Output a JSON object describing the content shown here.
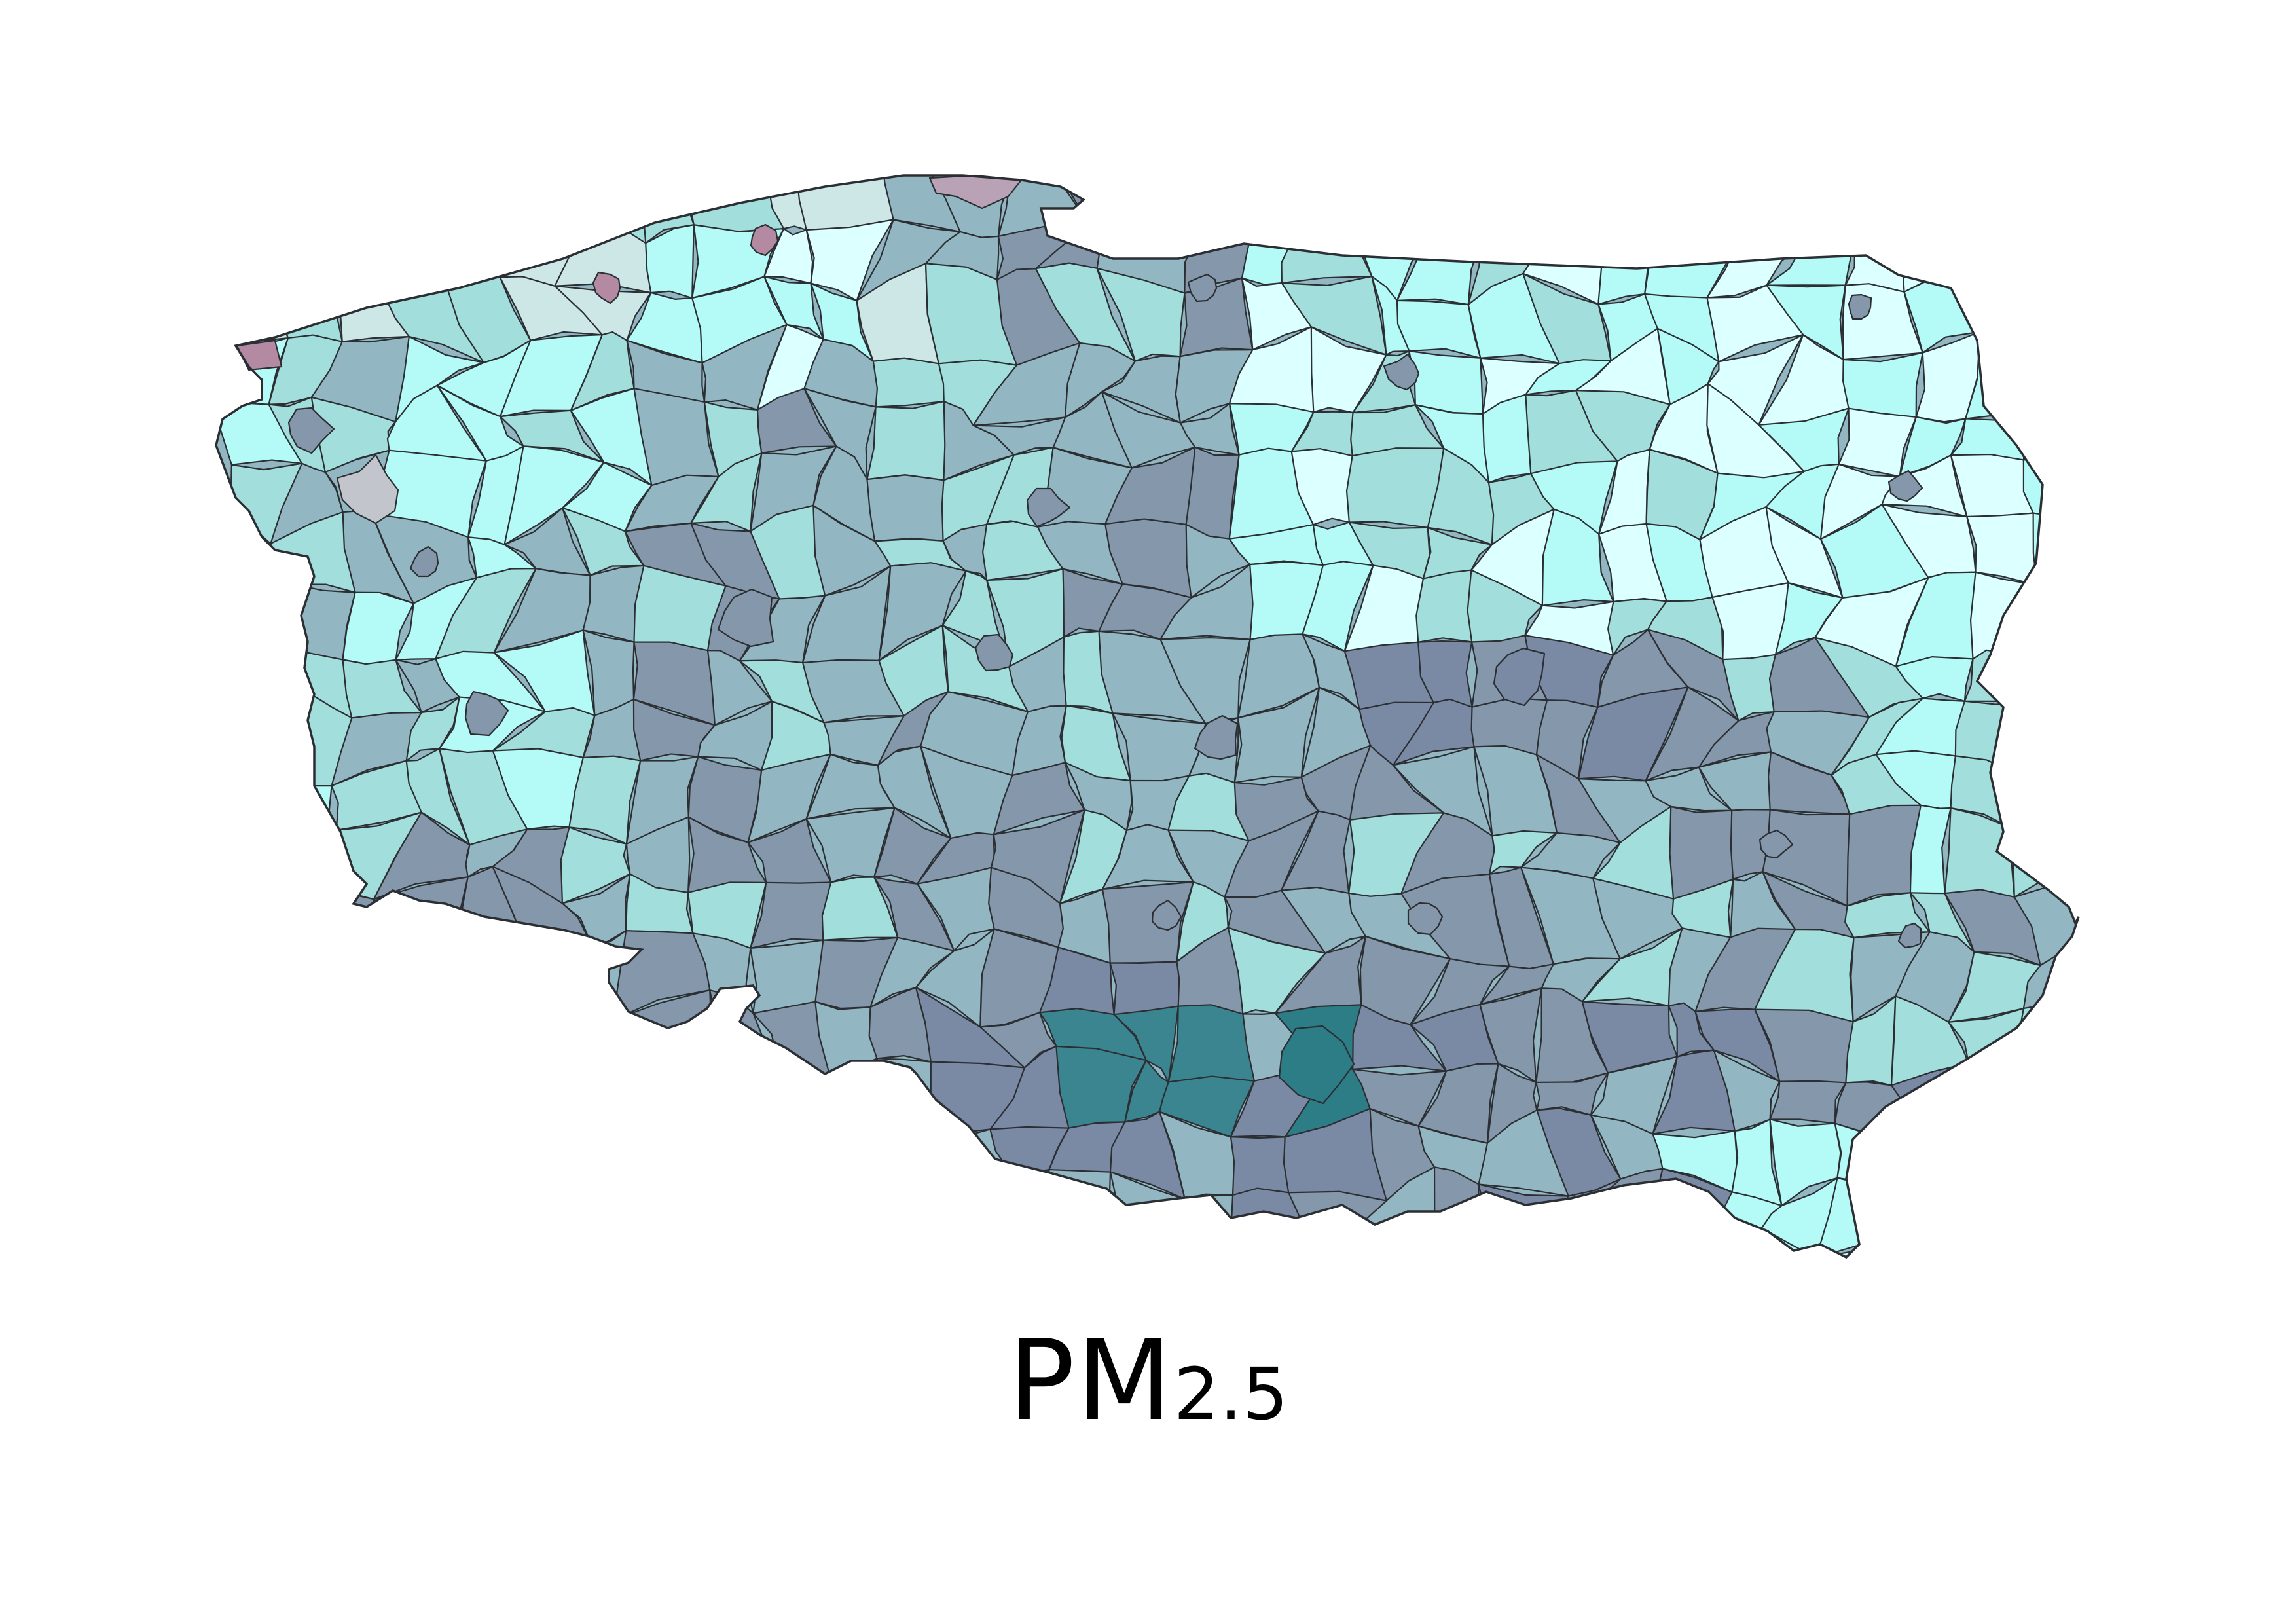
{
  "title": {
    "main": "PM",
    "sub": "2.5"
  },
  "palette": {
    "background": "#ffffff",
    "border": "#2b2f33",
    "very_low": "#dcffff",
    "low": "#b4fbf8",
    "low_mid": "#a2dfdc",
    "pale_grey": "#cde6e6",
    "mid": "#93b7c2",
    "mid_high": "#8597ab",
    "high": "#7a8aa5",
    "hotspot": "#3a8590",
    "hotspot_dark": "#2d7d86",
    "outlier_pink": "#b9a2b5",
    "outlier_mauve": "#b48aa3",
    "outlier_grey": "#c2c5cc"
  }
}
